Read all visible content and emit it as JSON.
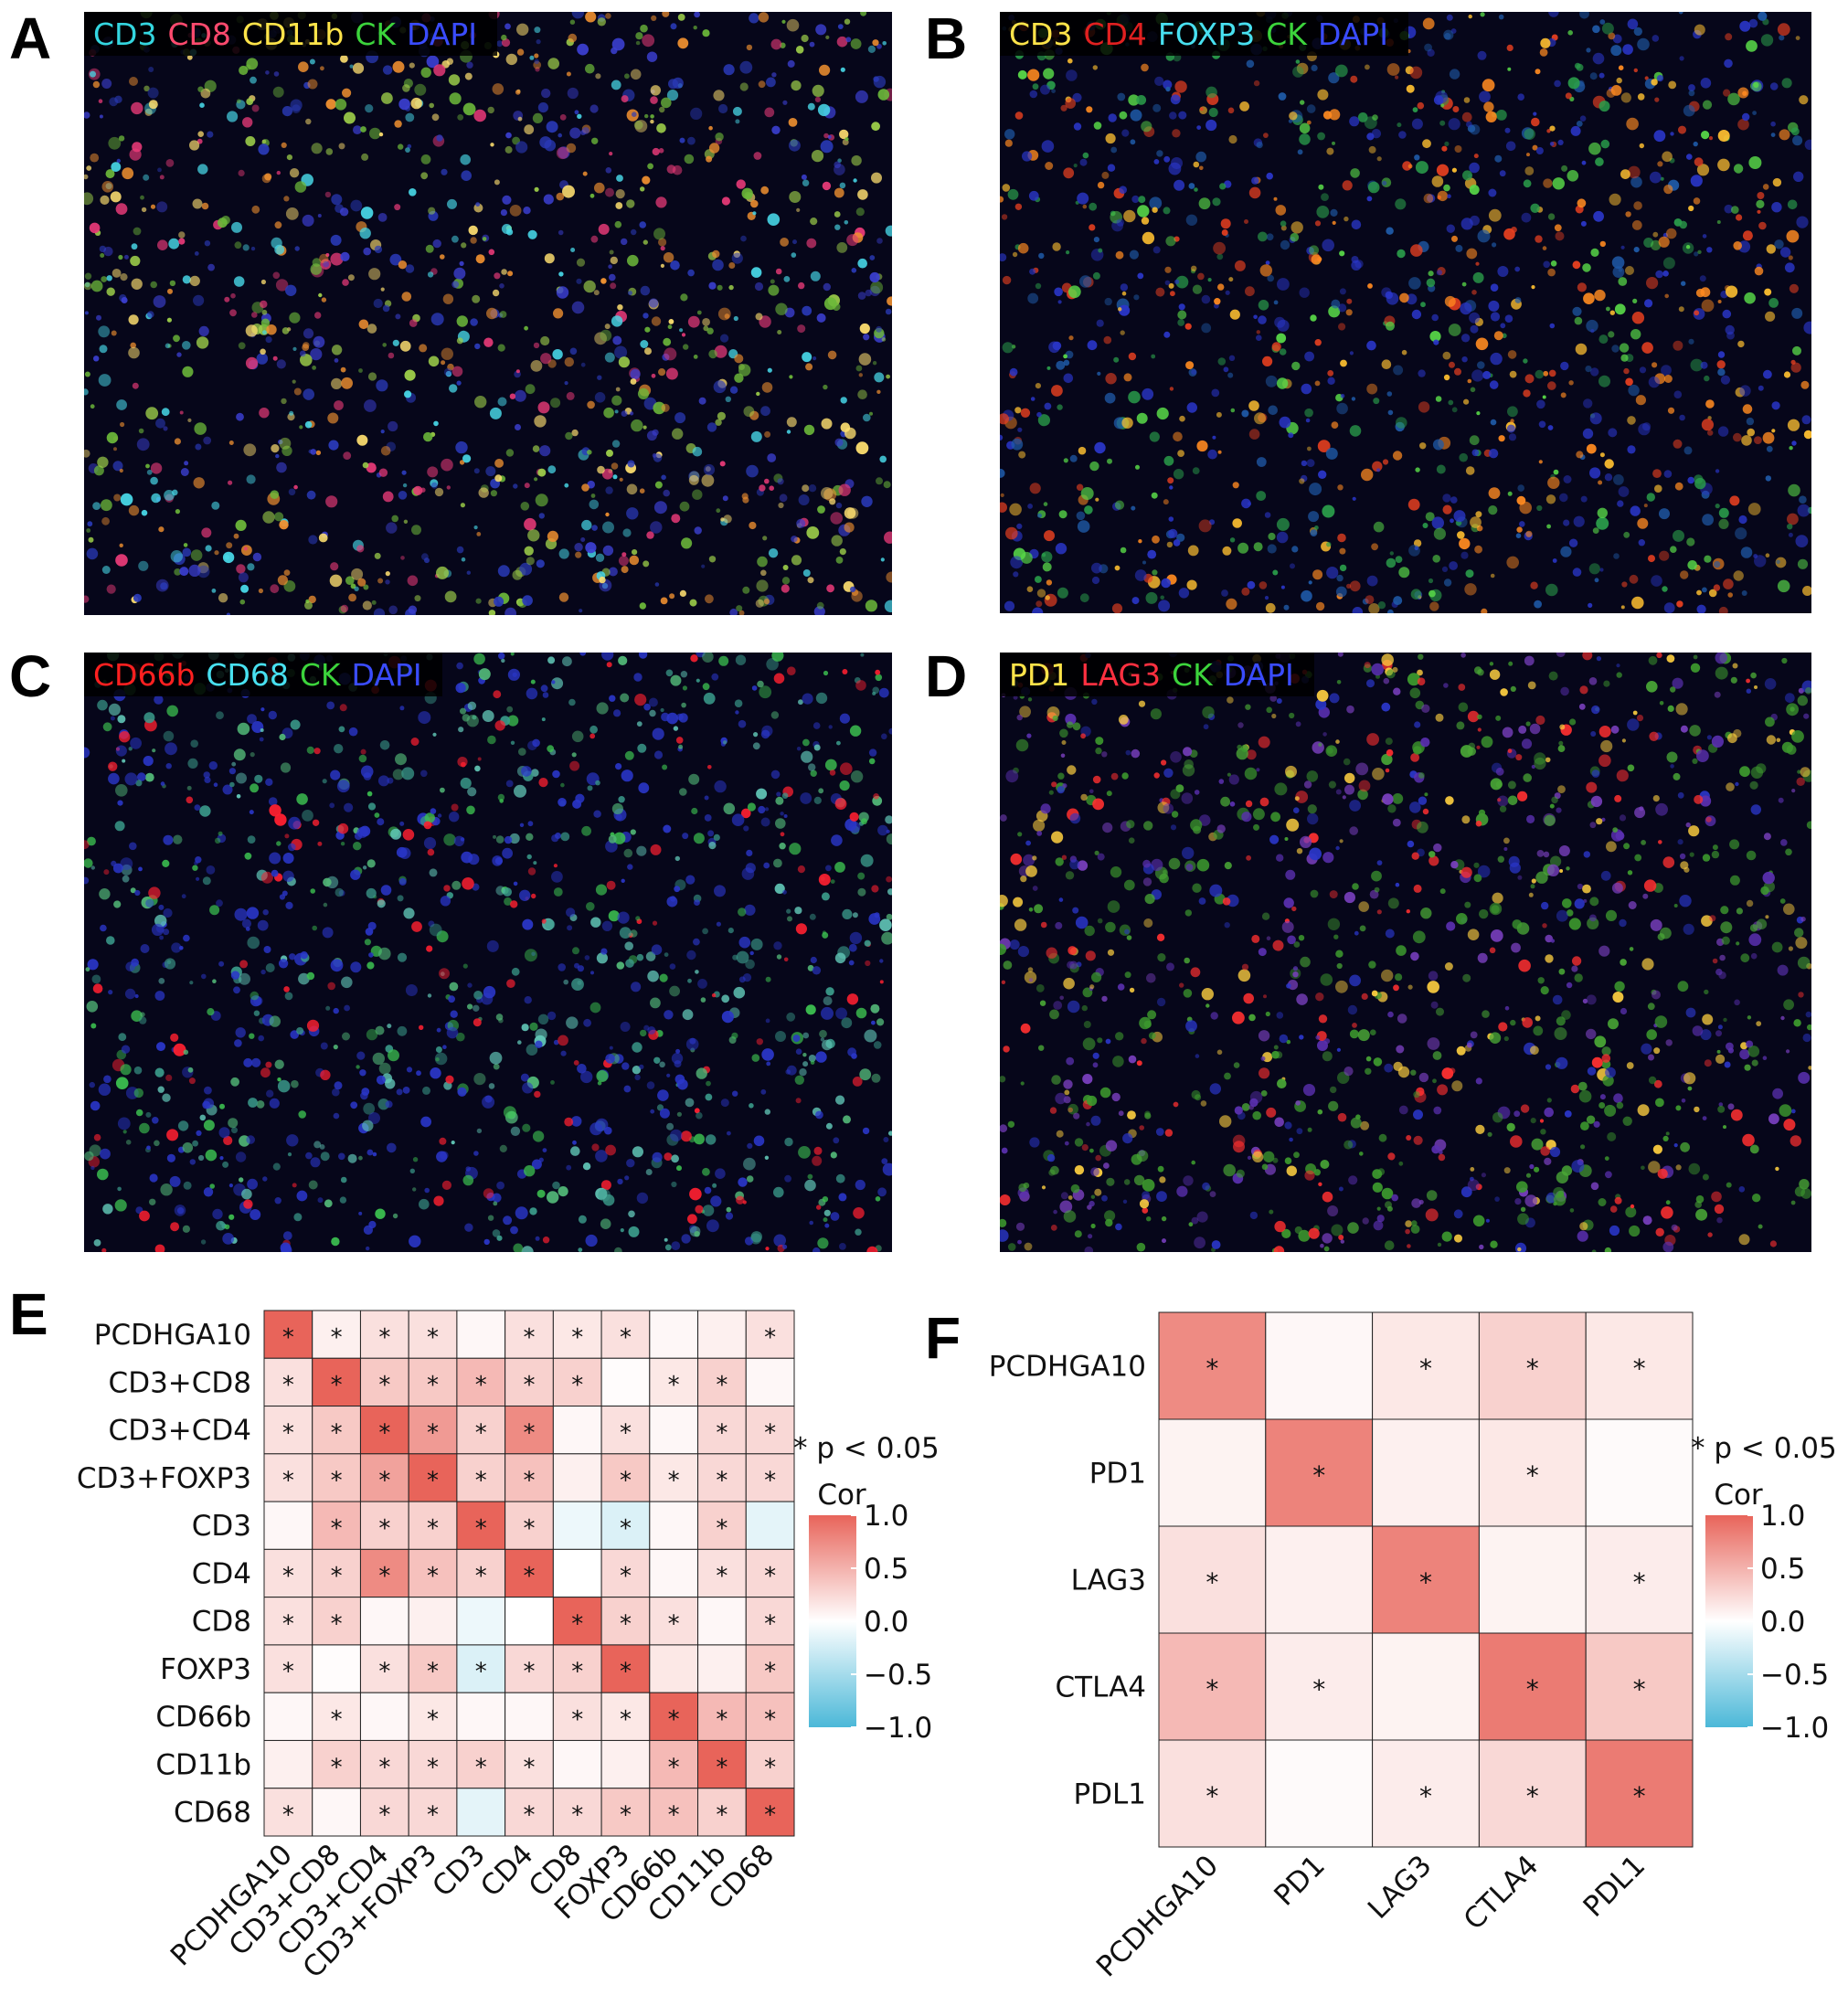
{
  "panels": {
    "A": {
      "letter": "A",
      "markers": [
        {
          "text": "CD3",
          "color": "#34d6e0"
        },
        {
          "text": "CD8",
          "color": "#ff4a6e"
        },
        {
          "text": "CD11b",
          "color": "#ffe44a"
        },
        {
          "text": "CK",
          "color": "#3cd43c"
        },
        {
          "text": "DAPI",
          "color": "#3a4cff"
        }
      ],
      "palette": [
        "#3b3fd0",
        "#2a3ab8",
        "#6cb83a",
        "#9ed04a",
        "#e83a78",
        "#ffe070",
        "#48d8e8",
        "#f09030"
      ]
    },
    "B": {
      "letter": "B",
      "markers": [
        {
          "text": "CD3",
          "color": "#ffe44a"
        },
        {
          "text": "CD4",
          "color": "#e02020"
        },
        {
          "text": "FOXP3",
          "color": "#48e0f0"
        },
        {
          "text": "CK",
          "color": "#3cd43c"
        },
        {
          "text": "DAPI",
          "color": "#3a4cff"
        }
      ],
      "palette": [
        "#2a36c8",
        "#2a36c8",
        "#1f5aa8",
        "#2a9c4a",
        "#58d848",
        "#ffc030",
        "#ff8a20",
        "#e84020"
      ]
    },
    "C": {
      "letter": "C",
      "markers": [
        {
          "text": "CD66b",
          "color": "#ff2020"
        },
        {
          "text": "CD68",
          "color": "#48e0f0"
        },
        {
          "text": "CK",
          "color": "#3cd43c"
        },
        {
          "text": "DAPI",
          "color": "#3a4cff"
        }
      ],
      "palette": [
        "#2a36c8",
        "#2a36c8",
        "#2a36c8",
        "#3a9a8a",
        "#52b878",
        "#3cc050",
        "#62c8b8",
        "#ff2030"
      ]
    },
    "D": {
      "letter": "D",
      "markers": [
        {
          "text": "PD1",
          "color": "#ffe44a"
        },
        {
          "text": "LAG3",
          "color": "#ff3040"
        },
        {
          "text": "CK",
          "color": "#3cd43c"
        },
        {
          "text": "DAPI",
          "color": "#3a4cff"
        }
      ],
      "palette": [
        "#3d9a2e",
        "#4aa836",
        "#3d9a2e",
        "#2a36c8",
        "#5a30b0",
        "#7a40c0",
        "#ffd040",
        "#ff3030"
      ]
    },
    "E": {
      "letter": "E"
    },
    "F": {
      "letter": "F"
    }
  },
  "chart_data": [
    {
      "type": "heatmap",
      "panel": "E",
      "rows": [
        "PCDHGA10",
        "CD3+CD8",
        "CD3+CD4",
        "CD3+FOXP3",
        "CD3",
        "CD4",
        "CD8",
        "FOXP3",
        "CD66b",
        "CD11b",
        "CD68"
      ],
      "columns": [
        "PCDHGA10",
        "CD3+CD8",
        "CD3+CD4",
        "CD3+FOXP3",
        "CD3",
        "CD4",
        "CD8",
        "FOXP3",
        "CD66b",
        "CD11b",
        "CD68"
      ],
      "values": [
        [
          1.0,
          0.1,
          0.2,
          0.2,
          0.05,
          0.2,
          0.15,
          0.2,
          0.05,
          0.1,
          0.2
        ],
        [
          0.2,
          1.0,
          0.35,
          0.35,
          0.45,
          0.3,
          0.3,
          0.02,
          0.15,
          0.3,
          0.05
        ],
        [
          0.2,
          0.35,
          1.0,
          0.65,
          0.3,
          0.75,
          0.05,
          0.2,
          0.05,
          0.25,
          0.25
        ],
        [
          0.2,
          0.35,
          0.6,
          1.0,
          0.3,
          0.4,
          0.1,
          0.35,
          0.15,
          0.25,
          0.25
        ],
        [
          0.05,
          0.45,
          0.3,
          0.3,
          1.0,
          0.3,
          -0.1,
          -0.2,
          0.05,
          0.3,
          -0.15
        ],
        [
          0.2,
          0.3,
          0.75,
          0.4,
          0.3,
          1.0,
          0.0,
          0.25,
          0.05,
          0.2,
          0.25
        ],
        [
          0.2,
          0.3,
          0.05,
          0.1,
          -0.1,
          0.0,
          1.0,
          0.3,
          0.2,
          0.05,
          0.25
        ],
        [
          0.2,
          0.02,
          0.2,
          0.35,
          -0.2,
          0.25,
          0.3,
          1.0,
          0.15,
          0.1,
          0.35
        ],
        [
          0.05,
          0.15,
          0.05,
          0.15,
          0.05,
          0.05,
          0.2,
          0.15,
          1.0,
          0.45,
          0.4
        ],
        [
          0.1,
          0.3,
          0.25,
          0.25,
          0.3,
          0.2,
          0.05,
          0.1,
          0.45,
          1.0,
          0.3
        ],
        [
          0.2,
          0.05,
          0.25,
          0.25,
          -0.15,
          0.25,
          0.25,
          0.35,
          0.4,
          0.3,
          1.0
        ]
      ],
      "significant": [
        [
          1,
          1,
          1,
          1,
          0,
          1,
          1,
          1,
          0,
          0,
          1
        ],
        [
          1,
          1,
          1,
          1,
          1,
          1,
          1,
          0,
          1,
          1,
          0
        ],
        [
          1,
          1,
          1,
          1,
          1,
          1,
          0,
          1,
          0,
          1,
          1
        ],
        [
          1,
          1,
          1,
          1,
          1,
          1,
          0,
          1,
          1,
          1,
          1
        ],
        [
          0,
          1,
          1,
          1,
          1,
          1,
          0,
          1,
          0,
          1,
          0
        ],
        [
          1,
          1,
          1,
          1,
          1,
          1,
          0,
          1,
          0,
          1,
          1
        ],
        [
          1,
          1,
          0,
          0,
          0,
          0,
          1,
          1,
          1,
          0,
          1
        ],
        [
          1,
          0,
          1,
          1,
          1,
          1,
          1,
          1,
          0,
          0,
          1
        ],
        [
          0,
          1,
          0,
          1,
          0,
          0,
          1,
          1,
          1,
          1,
          1
        ],
        [
          0,
          1,
          1,
          1,
          1,
          1,
          0,
          0,
          1,
          1,
          1
        ],
        [
          1,
          0,
          1,
          1,
          0,
          1,
          1,
          1,
          1,
          1,
          1
        ]
      ],
      "significance_note": "* p < 0.05",
      "legend_title": "Cor",
      "legend_ticks": [
        "1.0",
        "0.5",
        "0.0",
        "−0.5",
        "−1.0"
      ],
      "colormap": {
        "min": -1.0,
        "max": 1.0,
        "low_color": "#4bb8d8",
        "mid_color": "#ffffff",
        "high_color": "#e8645a"
      }
    },
    {
      "type": "heatmap",
      "panel": "F",
      "rows": [
        "PCDHGA10",
        "PD1",
        "LAG3",
        "CTLA4",
        "PDL1"
      ],
      "columns": [
        "PCDHGA10",
        "PD1",
        "LAG3",
        "CTLA4",
        "PDL1"
      ],
      "values": [
        [
          0.75,
          0.05,
          0.15,
          0.3,
          0.15
        ],
        [
          0.08,
          0.8,
          0.1,
          0.15,
          0.03
        ],
        [
          0.2,
          0.1,
          0.8,
          0.08,
          0.12
        ],
        [
          0.45,
          0.12,
          0.08,
          0.85,
          0.35
        ],
        [
          0.2,
          0.03,
          0.12,
          0.25,
          0.85
        ]
      ],
      "significant": [
        [
          1,
          0,
          1,
          1,
          1
        ],
        [
          0,
          1,
          0,
          1,
          0
        ],
        [
          1,
          0,
          1,
          0,
          1
        ],
        [
          1,
          1,
          0,
          1,
          1
        ],
        [
          1,
          0,
          1,
          1,
          1
        ]
      ],
      "significance_note": "* p < 0.05",
      "legend_title": "Cor",
      "legend_ticks": [
        "1.0",
        "0.5",
        "0.0",
        "−0.5",
        "−1.0"
      ],
      "colormap": {
        "min": -1.0,
        "max": 1.0,
        "low_color": "#4bb8d8",
        "mid_color": "#ffffff",
        "high_color": "#e8645a"
      }
    }
  ]
}
